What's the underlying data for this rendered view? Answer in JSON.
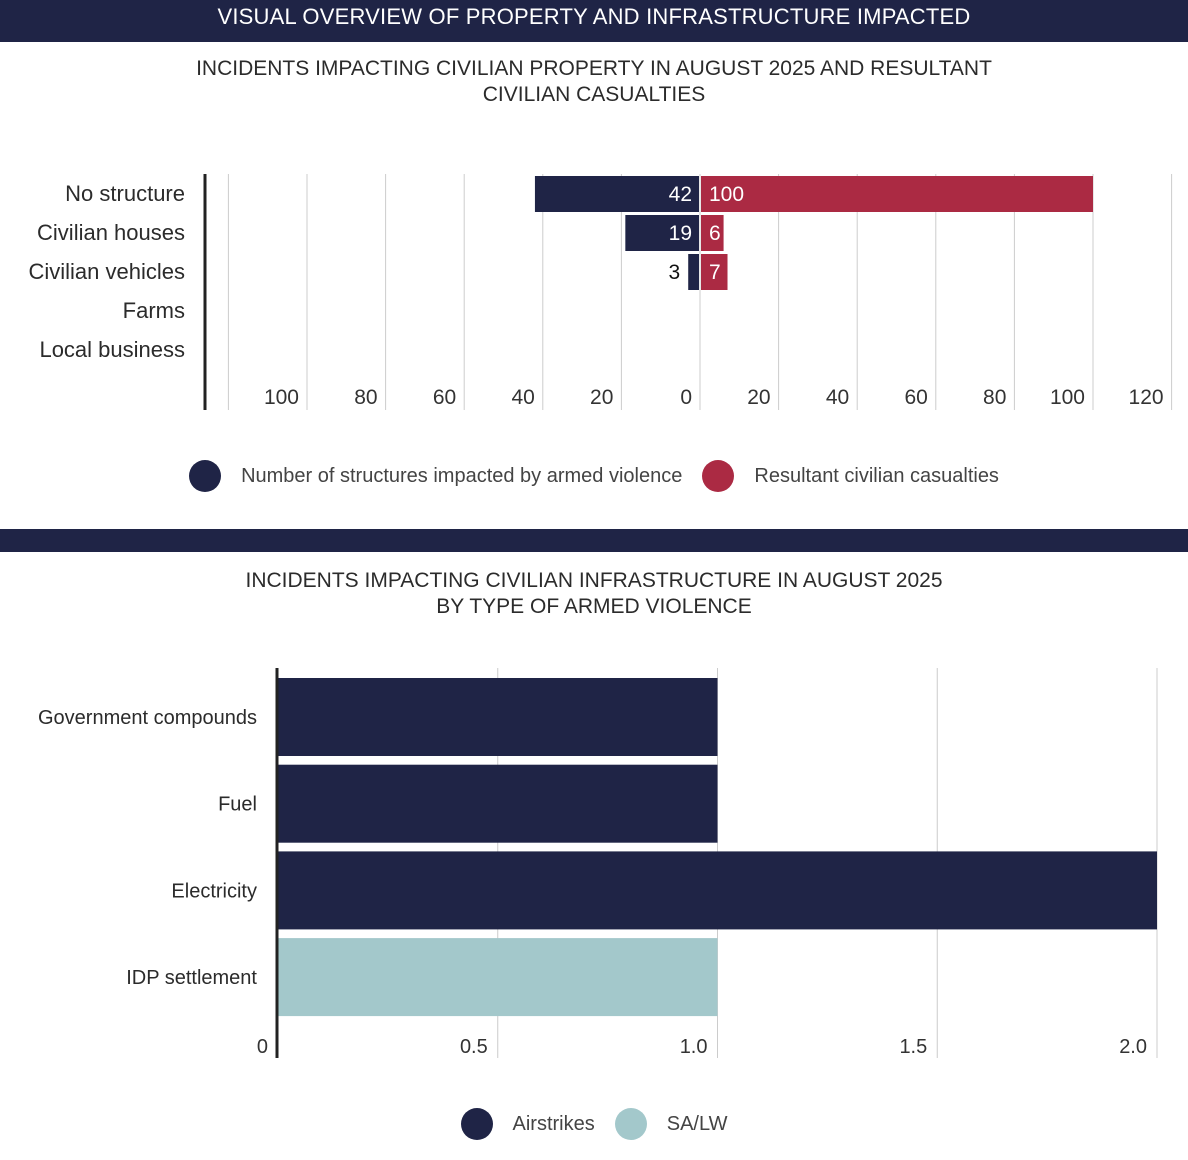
{
  "header": {
    "title": "VISUAL OVERVIEW OF PROPERTY AND INFRASTRUCTURE IMPACTED"
  },
  "colors": {
    "navy": "#1f2446",
    "red": "#ab2a43",
    "teal": "#a3c8cb",
    "grid": "#cccccc",
    "axis": "#222222"
  },
  "chart_data": [
    {
      "type": "bar",
      "orientation": "horizontal-diverging",
      "title_lines": [
        "INCIDENTS IMPACTING CIVILIAN PROPERTY IN AUGUST 2025 AND RESULTANT",
        "CIVILIAN CASUALTIES"
      ],
      "categories": [
        "No structure",
        "Civilian houses",
        "Civilian vehicles",
        "Farms",
        "Local business"
      ],
      "series": [
        {
          "name": "Number of structures impacted by armed violence",
          "values": [
            42,
            19,
            3,
            0,
            0
          ],
          "color": "#1f2446",
          "direction": "left"
        },
        {
          "name": "Resultant civilian casualties",
          "values": [
            100,
            6,
            7,
            0,
            0
          ],
          "color": "#ab2a43",
          "direction": "right"
        }
      ],
      "x_tick_labels": [
        "100",
        "80",
        "60",
        "40",
        "20",
        "0",
        "20",
        "40",
        "60",
        "80",
        "100",
        "120"
      ],
      "xlim": [
        -120,
        120
      ],
      "grid": true,
      "legend": "bottom"
    },
    {
      "type": "bar",
      "orientation": "horizontal",
      "title_lines": [
        "INCIDENTS IMPACTING CIVILIAN INFRASTRUCTURE IN AUGUST 2025",
        "BY TYPE OF ARMED VIOLENCE"
      ],
      "categories": [
        "Government compounds",
        "Fuel",
        "Electricity",
        "IDP settlement"
      ],
      "series": [
        {
          "name": "Airstrikes",
          "values": [
            1,
            1,
            2,
            0
          ],
          "color": "#1f2446"
        },
        {
          "name": "SA/LW",
          "values": [
            0,
            0,
            0,
            1
          ],
          "color": "#a3c8cb"
        }
      ],
      "x_tick_labels": [
        "0",
        "0.5",
        "1.0",
        "1.5",
        "2.0"
      ],
      "xlim": [
        0,
        2
      ],
      "grid": true,
      "legend": "bottom"
    }
  ]
}
